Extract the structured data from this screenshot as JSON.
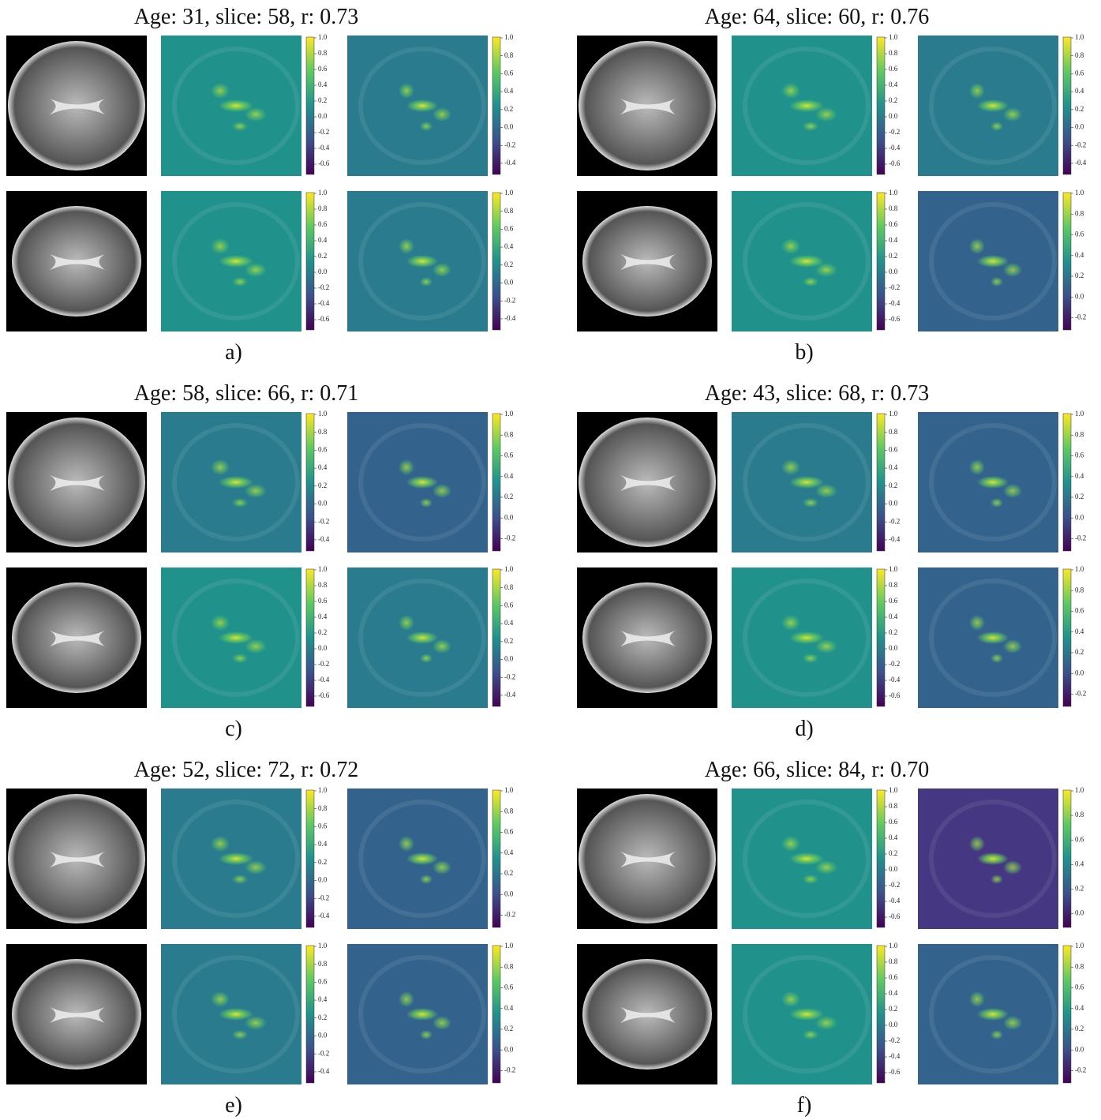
{
  "panels": [
    {
      "title": "Age: 31, slice: 58, r: 0.73",
      "label": "a)",
      "rows": [
        {
          "colorbars": [
            [
              "1.0",
              "0.8",
              "0.6",
              "0.4",
              "0.2",
              "0.0",
              "-0.2",
              "-0.4",
              "-0.6"
            ],
            [
              "1.0",
              "0.8",
              "0.6",
              "0.4",
              "0.2",
              "0.0",
              "-0.2",
              "-0.4"
            ]
          ]
        },
        {
          "colorbars": [
            [
              "1.0",
              "0.8",
              "0.6",
              "0.4",
              "0.2",
              "0.0",
              "-0.2",
              "-0.4",
              "-0.6"
            ],
            [
              "1.0",
              "0.8",
              "0.6",
              "0.4",
              "0.2",
              "0.0",
              "-0.2",
              "-0.4"
            ]
          ]
        }
      ]
    },
    {
      "title": "Age: 64, slice: 60, r: 0.76",
      "label": "b)",
      "rows": [
        {
          "colorbars": [
            [
              "1.0",
              "0.8",
              "0.6",
              "0.4",
              "0.2",
              "0.0",
              "-0.2",
              "-0.4",
              "-0.6"
            ],
            [
              "1.0",
              "0.8",
              "0.6",
              "0.4",
              "0.2",
              "0.0",
              "-0.2",
              "-0.4"
            ]
          ]
        },
        {
          "colorbars": [
            [
              "1.0",
              "0.8",
              "0.6",
              "0.4",
              "0.2",
              "0.0",
              "-0.2",
              "-0.4",
              "-0.6"
            ],
            [
              "1.0",
              "0.8",
              "0.6",
              "0.4",
              "0.2",
              "0.0",
              "-0.2"
            ]
          ]
        }
      ]
    },
    {
      "title": "Age: 58, slice: 66, r: 0.71",
      "label": "c)",
      "rows": [
        {
          "colorbars": [
            [
              "1.0",
              "0.8",
              "0.6",
              "0.4",
              "0.2",
              "0.0",
              "-0.2",
              "-0.4"
            ],
            [
              "1.0",
              "0.8",
              "0.6",
              "0.4",
              "0.2",
              "0.0",
              "-0.2"
            ]
          ]
        },
        {
          "colorbars": [
            [
              "1.0",
              "0.8",
              "0.6",
              "0.4",
              "0.2",
              "0.0",
              "-0.2",
              "-0.4",
              "-0.6"
            ],
            [
              "1.0",
              "0.8",
              "0.6",
              "0.4",
              "0.2",
              "0.0",
              "-0.2",
              "-0.4"
            ]
          ]
        }
      ]
    },
    {
      "title": "Age: 43, slice: 68, r: 0.73",
      "label": "d)",
      "rows": [
        {
          "colorbars": [
            [
              "1.0",
              "0.8",
              "0.6",
              "0.4",
              "0.2",
              "0.0",
              "-0.2",
              "-0.4"
            ],
            [
              "1.0",
              "0.8",
              "0.6",
              "0.4",
              "0.2",
              "0.0",
              "-0.2"
            ]
          ]
        },
        {
          "colorbars": [
            [
              "1.0",
              "0.8",
              "0.6",
              "0.4",
              "0.2",
              "0.0",
              "-0.2",
              "-0.4",
              "-0.6"
            ],
            [
              "1.0",
              "0.8",
              "0.6",
              "0.4",
              "0.2",
              "0.0",
              "-0.2"
            ]
          ]
        }
      ]
    },
    {
      "title": "Age: 52, slice: 72, r: 0.72",
      "label": "e)",
      "rows": [
        {
          "colorbars": [
            [
              "1.0",
              "0.8",
              "0.6",
              "0.4",
              "0.2",
              "0.0",
              "-0.2",
              "-0.4"
            ],
            [
              "1.0",
              "0.8",
              "0.6",
              "0.4",
              "0.2",
              "0.0",
              "-0.2"
            ]
          ]
        },
        {
          "colorbars": [
            [
              "1.0",
              "0.8",
              "0.6",
              "0.4",
              "0.2",
              "0.0",
              "-0.2",
              "-0.4"
            ],
            [
              "1.0",
              "0.8",
              "0.6",
              "0.4",
              "0.2",
              "0.0",
              "-0.2"
            ]
          ]
        }
      ]
    },
    {
      "title": "Age: 66, slice: 84, r: 0.70",
      "label": "f)",
      "rows": [
        {
          "colorbars": [
            [
              "1.0",
              "0.8",
              "0.6",
              "0.4",
              "0.2",
              "0.0",
              "-0.2",
              "-0.4",
              "-0.6"
            ],
            [
              "1.0",
              "0.8",
              "0.6",
              "0.4",
              "0.2",
              "0.0"
            ]
          ]
        },
        {
          "colorbars": [
            [
              "1.0",
              "0.8",
              "0.6",
              "0.4",
              "0.2",
              "0.0",
              "-0.2",
              "-0.4",
              "-0.6"
            ],
            [
              "1.0",
              "0.8",
              "0.6",
              "0.4",
              "0.2",
              "0.0",
              "-0.2"
            ]
          ]
        }
      ]
    }
  ]
}
